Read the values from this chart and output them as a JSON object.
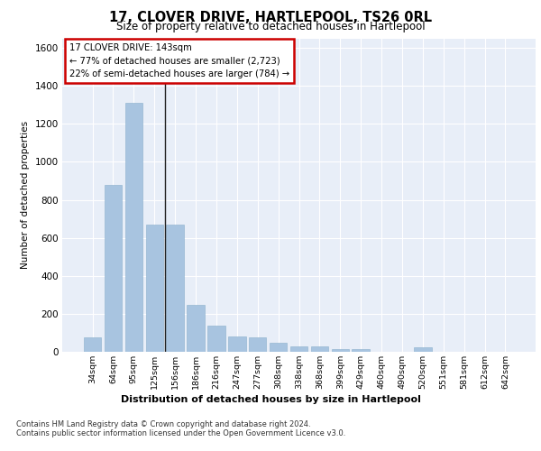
{
  "title": "17, CLOVER DRIVE, HARTLEPOOL, TS26 0RL",
  "subtitle": "Size of property relative to detached houses in Hartlepool",
  "xlabel": "Distribution of detached houses by size in Hartlepool",
  "ylabel": "Number of detached properties",
  "footer_line1": "Contains HM Land Registry data © Crown copyright and database right 2024.",
  "footer_line2": "Contains public sector information licensed under the Open Government Licence v3.0.",
  "annotation_title": "17 CLOVER DRIVE: 143sqm",
  "annotation_line2": "← 77% of detached houses are smaller (2,723)",
  "annotation_line3": "22% of semi-detached houses are larger (784) →",
  "bar_color": "#a8c4e0",
  "annotation_box_color": "#cc0000",
  "background_color": "#e8eef8",
  "grid_color": "#ffffff",
  "categories": [
    "34sqm",
    "64sqm",
    "95sqm",
    "125sqm",
    "156sqm",
    "186sqm",
    "216sqm",
    "247sqm",
    "277sqm",
    "308sqm",
    "338sqm",
    "368sqm",
    "399sqm",
    "429sqm",
    "460sqm",
    "490sqm",
    "520sqm",
    "551sqm",
    "581sqm",
    "612sqm",
    "642sqm"
  ],
  "values": [
    75,
    880,
    1310,
    670,
    670,
    245,
    140,
    80,
    75,
    48,
    30,
    27,
    15,
    14,
    0,
    0,
    22,
    0,
    0,
    0,
    0
  ],
  "ylim": [
    0,
    1650
  ],
  "yticks": [
    0,
    200,
    400,
    600,
    800,
    1000,
    1200,
    1400,
    1600
  ],
  "vline_x": 3.5,
  "vline_color": "#222222"
}
